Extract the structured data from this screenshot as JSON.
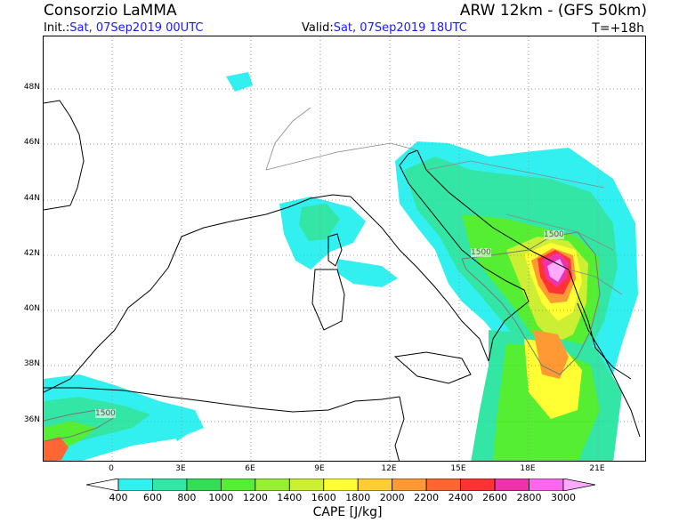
{
  "header": {
    "org": "Consorzio LaMMA",
    "model": "ARW 12km - (GFS 50km)",
    "init_label": "Init.:",
    "init_value": "Sat, 07Sep2019 00UTC",
    "valid_label": "Valid:",
    "valid_value": "Sat, 07Sep2019 18UTC",
    "step": "T=+18h"
  },
  "map": {
    "lat_ticks": [
      "48N",
      "46N",
      "44N",
      "42N",
      "40N",
      "38N",
      "36N"
    ],
    "lon_ticks": [
      "0",
      "3E",
      "6E",
      "9E",
      "12E",
      "15E",
      "18E",
      "21E"
    ],
    "contour_labels": [
      "1500",
      "1500",
      "1500"
    ]
  },
  "legend": {
    "title": "CAPE [J/kg]",
    "levels": [
      "400",
      "600",
      "800",
      "1000",
      "1200",
      "1400",
      "1600",
      "1800",
      "2000",
      "2200",
      "2400",
      "2600",
      "2800",
      "3000"
    ],
    "colors": [
      "#ffffff",
      "#33f0f0",
      "#33e6a6",
      "#33dd55",
      "#55ee33",
      "#99ee33",
      "#ccee33",
      "#ffff33",
      "#ffcc33",
      "#ff9933",
      "#ff6633",
      "#ff3333",
      "#ee33aa",
      "#ff66ee",
      "#ffaaff"
    ]
  }
}
